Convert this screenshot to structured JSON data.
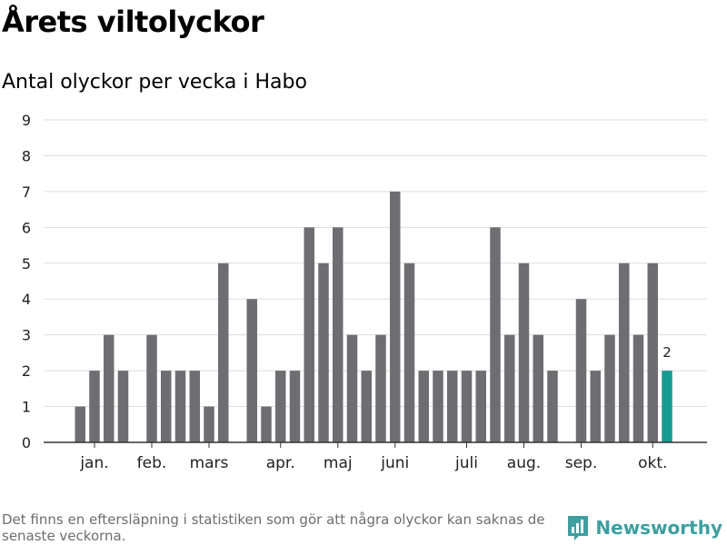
{
  "title": "Årets viltolyckor",
  "subtitle": "Antal olyckor per vecka i Habo",
  "footnote": "Det finns en eftersläpning i statistiken som gör att några olyckor kan saknas de senaste veckorna.",
  "brand": {
    "name": "Newsworthy",
    "color": "#3d9fa0"
  },
  "colors": {
    "bar": "#6e6d72",
    "highlight": "#169b91",
    "grid": "#dddddd",
    "axis": "#333333"
  },
  "chart_data": {
    "type": "bar",
    "x_unit": "week",
    "weeks": [
      1,
      2,
      3,
      4,
      5,
      6,
      7,
      8,
      9,
      10,
      11,
      12,
      13,
      14,
      15,
      16,
      17,
      18,
      19,
      20,
      21,
      22,
      23,
      24,
      25,
      26,
      27,
      28,
      29,
      30,
      31,
      32,
      33,
      34,
      35,
      36,
      37,
      38,
      39,
      40,
      41,
      42
    ],
    "values": [
      0,
      1,
      2,
      3,
      2,
      0,
      3,
      2,
      2,
      2,
      1,
      5,
      0,
      4,
      1,
      2,
      2,
      6,
      5,
      6,
      3,
      2,
      3,
      7,
      5,
      2,
      2,
      2,
      2,
      2,
      6,
      3,
      5,
      3,
      2,
      0,
      4,
      2,
      3,
      5,
      3,
      5
    ],
    "highlight": {
      "week": 43,
      "value": 2,
      "label": "2"
    },
    "ylim": [
      0,
      9
    ],
    "y_ticks": [
      0,
      1,
      2,
      3,
      4,
      5,
      6,
      7,
      8,
      9
    ],
    "month_labels": [
      {
        "label": "jan.",
        "week": 3
      },
      {
        "label": "feb.",
        "week": 7
      },
      {
        "label": "mars",
        "week": 11
      },
      {
        "label": "apr.",
        "week": 16
      },
      {
        "label": "maj",
        "week": 20
      },
      {
        "label": "juni",
        "week": 24
      },
      {
        "label": "juli",
        "week": 29
      },
      {
        "label": "aug.",
        "week": 33
      },
      {
        "label": "sep.",
        "week": 37
      },
      {
        "label": "okt.",
        "week": 42
      }
    ],
    "grid": true
  }
}
